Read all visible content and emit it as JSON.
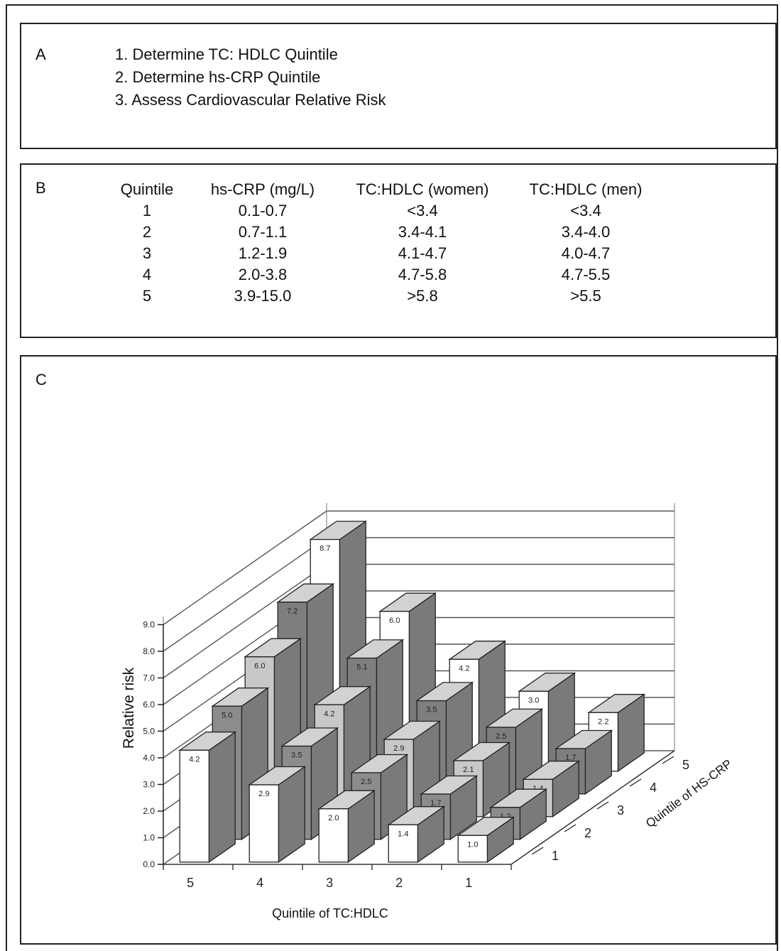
{
  "panel_a": {
    "label": "A",
    "steps": [
      "1. Determine TC: HDLC Quintile",
      "2. Determine hs-CRP Quintile",
      "3. Assess Cardiovascular Relative Risk"
    ]
  },
  "panel_b": {
    "label": "B",
    "headers": [
      "Quintile",
      "hs-CRP (mg/L)",
      "TC:HDLC (women)",
      "TC:HDLC (men)"
    ],
    "rows": [
      [
        "1",
        "0.1-0.7",
        "<3.4",
        "<3.4"
      ],
      [
        "2",
        "0.7-1.1",
        "3.4-4.1",
        "3.4-4.0"
      ],
      [
        "3",
        "1.2-1.9",
        "4.1-4.7",
        "4.0-4.7"
      ],
      [
        "4",
        "2.0-3.8",
        "4.7-5.8",
        "4.7-5.5"
      ],
      [
        "5",
        "3.9-15.0",
        ">5.8",
        ">5.5"
      ]
    ]
  },
  "panel_c": {
    "label": "C"
  },
  "chart_data": {
    "type": "bar",
    "variant": "3d-grouped",
    "ylabel": "Relative risk",
    "xlabel": "Quintile of TC:HDLC",
    "zlabel": "Quintile of HS-CRP",
    "ylim": [
      0,
      9
    ],
    "yticks": [
      "0.0",
      "1.0",
      "2.0",
      "3.0",
      "4.0",
      "5.0",
      "6.0",
      "7.0",
      "8.0",
      "9.0"
    ],
    "x_categories": [
      "5",
      "4",
      "3",
      "2",
      "1"
    ],
    "z_categories": [
      "1",
      "2",
      "3",
      "4",
      "5"
    ],
    "series": [
      {
        "name": "1",
        "values": [
          4.2,
          2.9,
          2.0,
          1.4,
          1.0
        ]
      },
      {
        "name": "2",
        "values": [
          5.0,
          3.5,
          2.5,
          1.7,
          1.2
        ]
      },
      {
        "name": "3",
        "values": [
          6.0,
          4.2,
          2.9,
          2.1,
          1.4
        ]
      },
      {
        "name": "4",
        "values": [
          7.2,
          5.1,
          3.5,
          2.5,
          1.7
        ]
      },
      {
        "name": "5",
        "values": [
          8.7,
          6.0,
          4.2,
          3.0,
          2.2
        ]
      }
    ],
    "value_labels": [
      [
        "4.2",
        "2.9",
        "2.0",
        "1.4",
        "1.0"
      ],
      [
        "5.0",
        "3.5",
        "2.5",
        "1.7",
        "1.2"
      ],
      [
        "6.0",
        "4.2",
        "2.9",
        "2.1",
        "1.4"
      ],
      [
        "7.2",
        "5.1",
        "3.5",
        "2.5",
        "1.7"
      ],
      [
        "8.7",
        "6.0",
        "4.2",
        "3.0",
        "2.2"
      ]
    ],
    "grid": true,
    "colors": {
      "series": [
        "#ffffff",
        "#9a9a9a",
        "#cfcfcf",
        "#8a8a8a",
        "#ffffff"
      ],
      "front_shade": [
        "#ffffff",
        "#8c8c8c",
        "#c8c8c8",
        "#7e7e7e",
        "#ffffff"
      ],
      "side": "#7a7a7a",
      "top": "#d2d2d2"
    }
  }
}
